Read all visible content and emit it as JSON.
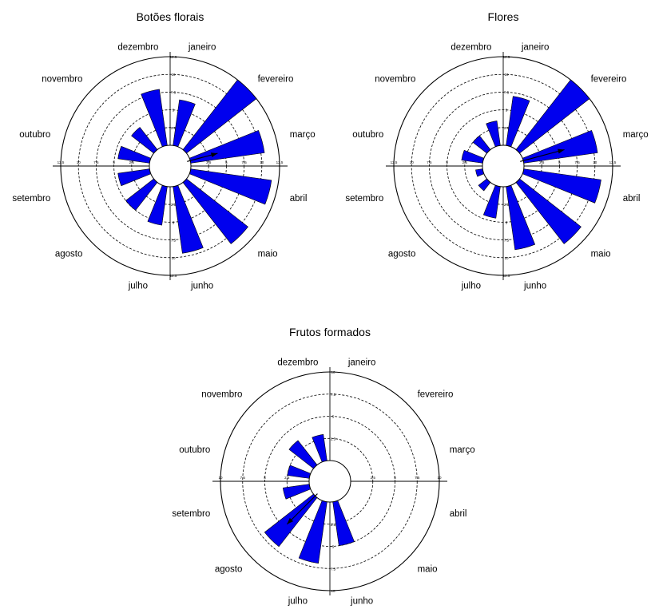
{
  "chart_data": [
    {
      "type": "rose",
      "title": "Botões florais",
      "months": [
        "janeiro",
        "fevereiro",
        "março",
        "abril",
        "maio",
        "junho",
        "julho",
        "agosto",
        "setembro",
        "outubro",
        "novembro",
        "dezembro"
      ],
      "values": [
        6.5,
        12.5,
        10.5,
        11.5,
        11.0,
        9.5,
        5.5,
        5.0,
        4.5,
        4.5,
        4.0,
        8.0
      ],
      "mean_vector": {
        "direction": "março",
        "length": 4.0
      },
      "rlim": [
        0,
        12.5
      ],
      "ring_labels": [
        "2.5",
        "5",
        "7.5",
        "10",
        "12.5"
      ],
      "color": "#0000ee"
    },
    {
      "type": "rose",
      "title": "Flores",
      "months": [
        "janeiro",
        "fevereiro",
        "março",
        "abril",
        "maio",
        "junho",
        "julho",
        "agosto",
        "setembro",
        "outubro",
        "novembro",
        "dezembro"
      ],
      "values": [
        7.0,
        12.5,
        10.5,
        11.0,
        11.0,
        9.0,
        4.5,
        1.5,
        1.0,
        3.0,
        2.5,
        3.5
      ],
      "mean_vector": {
        "direction": "março",
        "length": 6.0
      },
      "rlim": [
        0,
        12.5
      ],
      "ring_labels": [
        "2.5",
        "5",
        "7.5",
        "10",
        "12.5"
      ],
      "color": "#0000ee"
    },
    {
      "type": "rose",
      "title": "Frutos formados",
      "months": [
        "janeiro",
        "fevereiro",
        "março",
        "abril",
        "maio",
        "junho",
        "julho",
        "agosto",
        "setembro",
        "outubro",
        "novembro",
        "dezembro"
      ],
      "values": [
        0,
        0,
        0,
        0,
        0,
        5.0,
        7.0,
        7.0,
        3.0,
        2.5,
        3.5,
        3.0
      ],
      "mean_vector": {
        "direction": "agosto",
        "length": 4.5
      },
      "rlim": [
        0,
        10
      ],
      "ring_labels": [
        "2.5",
        "5",
        "7.5",
        "10"
      ],
      "color": "#0000ee"
    }
  ]
}
